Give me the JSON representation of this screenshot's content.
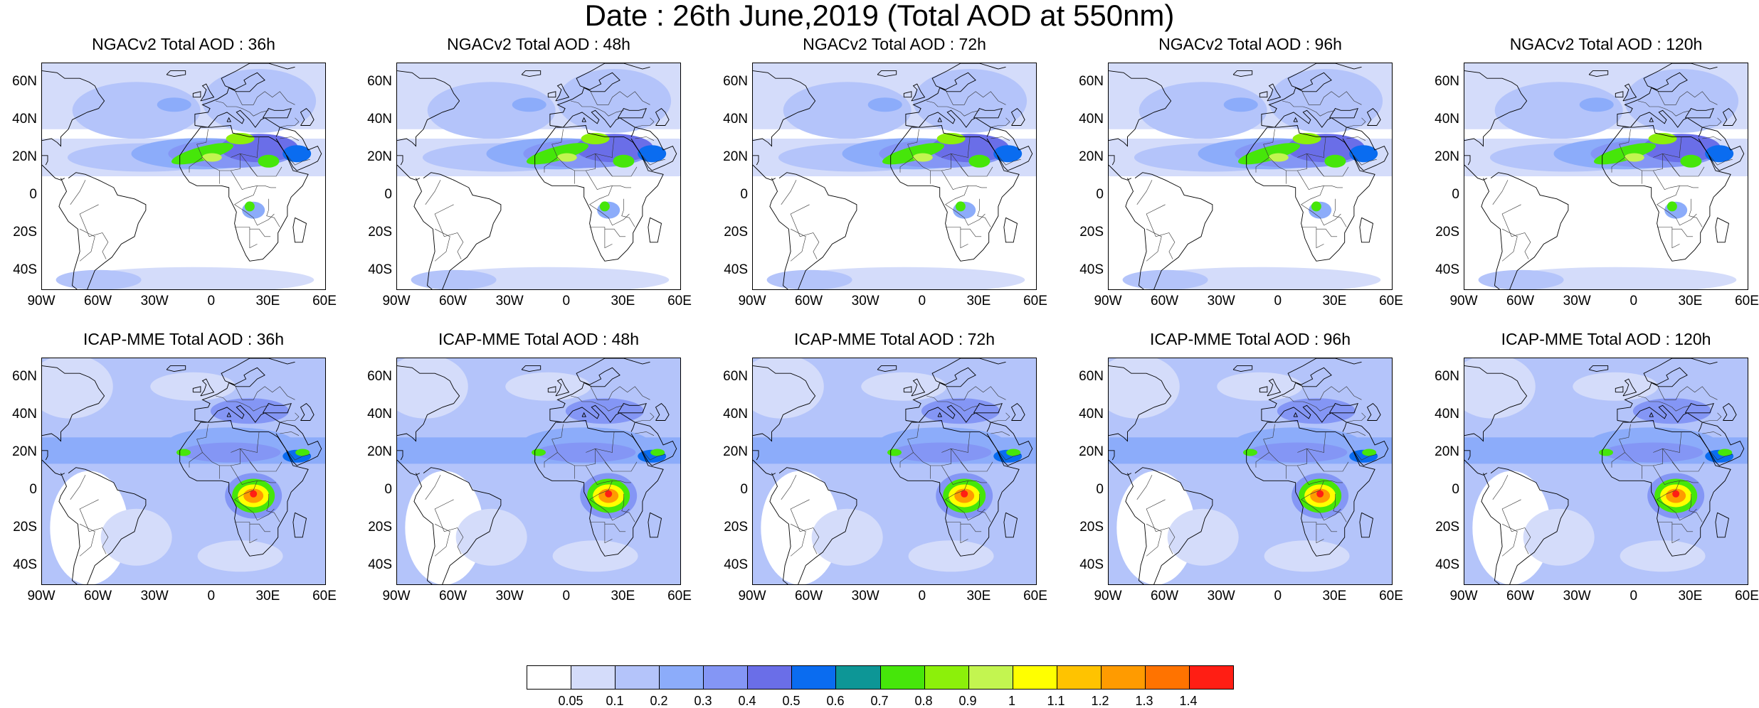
{
  "title": "Date : 26th June,2019 (Total AOD at 550nm)",
  "panels": [
    {
      "title": "NGACv2 Total AOD : 36h",
      "model": "ngac"
    },
    {
      "title": "NGACv2 Total AOD : 48h",
      "model": "ngac"
    },
    {
      "title": "NGACv2 Total AOD : 72h",
      "model": "ngac"
    },
    {
      "title": "NGACv2 Total AOD : 96h",
      "model": "ngac"
    },
    {
      "title": "NGACv2 Total AOD : 120h",
      "model": "ngac"
    },
    {
      "title": "ICAP-MME Total AOD : 36h",
      "model": "icap"
    },
    {
      "title": "ICAP-MME Total AOD : 48h",
      "model": "icap"
    },
    {
      "title": "ICAP-MME Total AOD : 72h",
      "model": "icap"
    },
    {
      "title": "ICAP-MME Total AOD : 96h",
      "model": "icap"
    },
    {
      "title": "ICAP-MME Total AOD : 120h",
      "model": "icap"
    }
  ],
  "map": {
    "lon_range": [
      -90,
      60
    ],
    "lat_range": [
      -50,
      70
    ],
    "lat_ticks": [
      {
        "value": 60,
        "label": "60N"
      },
      {
        "value": 40,
        "label": "40N"
      },
      {
        "value": 20,
        "label": "20N"
      },
      {
        "value": 0,
        "label": "0"
      },
      {
        "value": -20,
        "label": "20S"
      },
      {
        "value": -40,
        "label": "40S"
      }
    ],
    "lon_ticks": [
      {
        "value": -90,
        "label": "90W"
      },
      {
        "value": -60,
        "label": "60W"
      },
      {
        "value": -30,
        "label": "30W"
      },
      {
        "value": 0,
        "label": "0"
      },
      {
        "value": 30,
        "label": "30E"
      },
      {
        "value": 60,
        "label": "60E"
      }
    ]
  },
  "colorbar": {
    "colors": [
      "#ffffff",
      "#d4dcfa",
      "#b4c4fa",
      "#8cacfa",
      "#8496f5",
      "#6a6ee8",
      "#0a6cf0",
      "#0d9696",
      "#46e60a",
      "#8cf00a",
      "#c3f550",
      "#ffff00",
      "#ffc300",
      "#ff9b00",
      "#ff7300",
      "#ff1e14"
    ],
    "labels": [
      "0.05",
      "0.1",
      "0.2",
      "0.3",
      "0.4",
      "0.5",
      "0.6",
      "0.7",
      "0.8",
      "0.9",
      "1",
      "1.1",
      "1.2",
      "1.3",
      "1.4"
    ]
  }
}
